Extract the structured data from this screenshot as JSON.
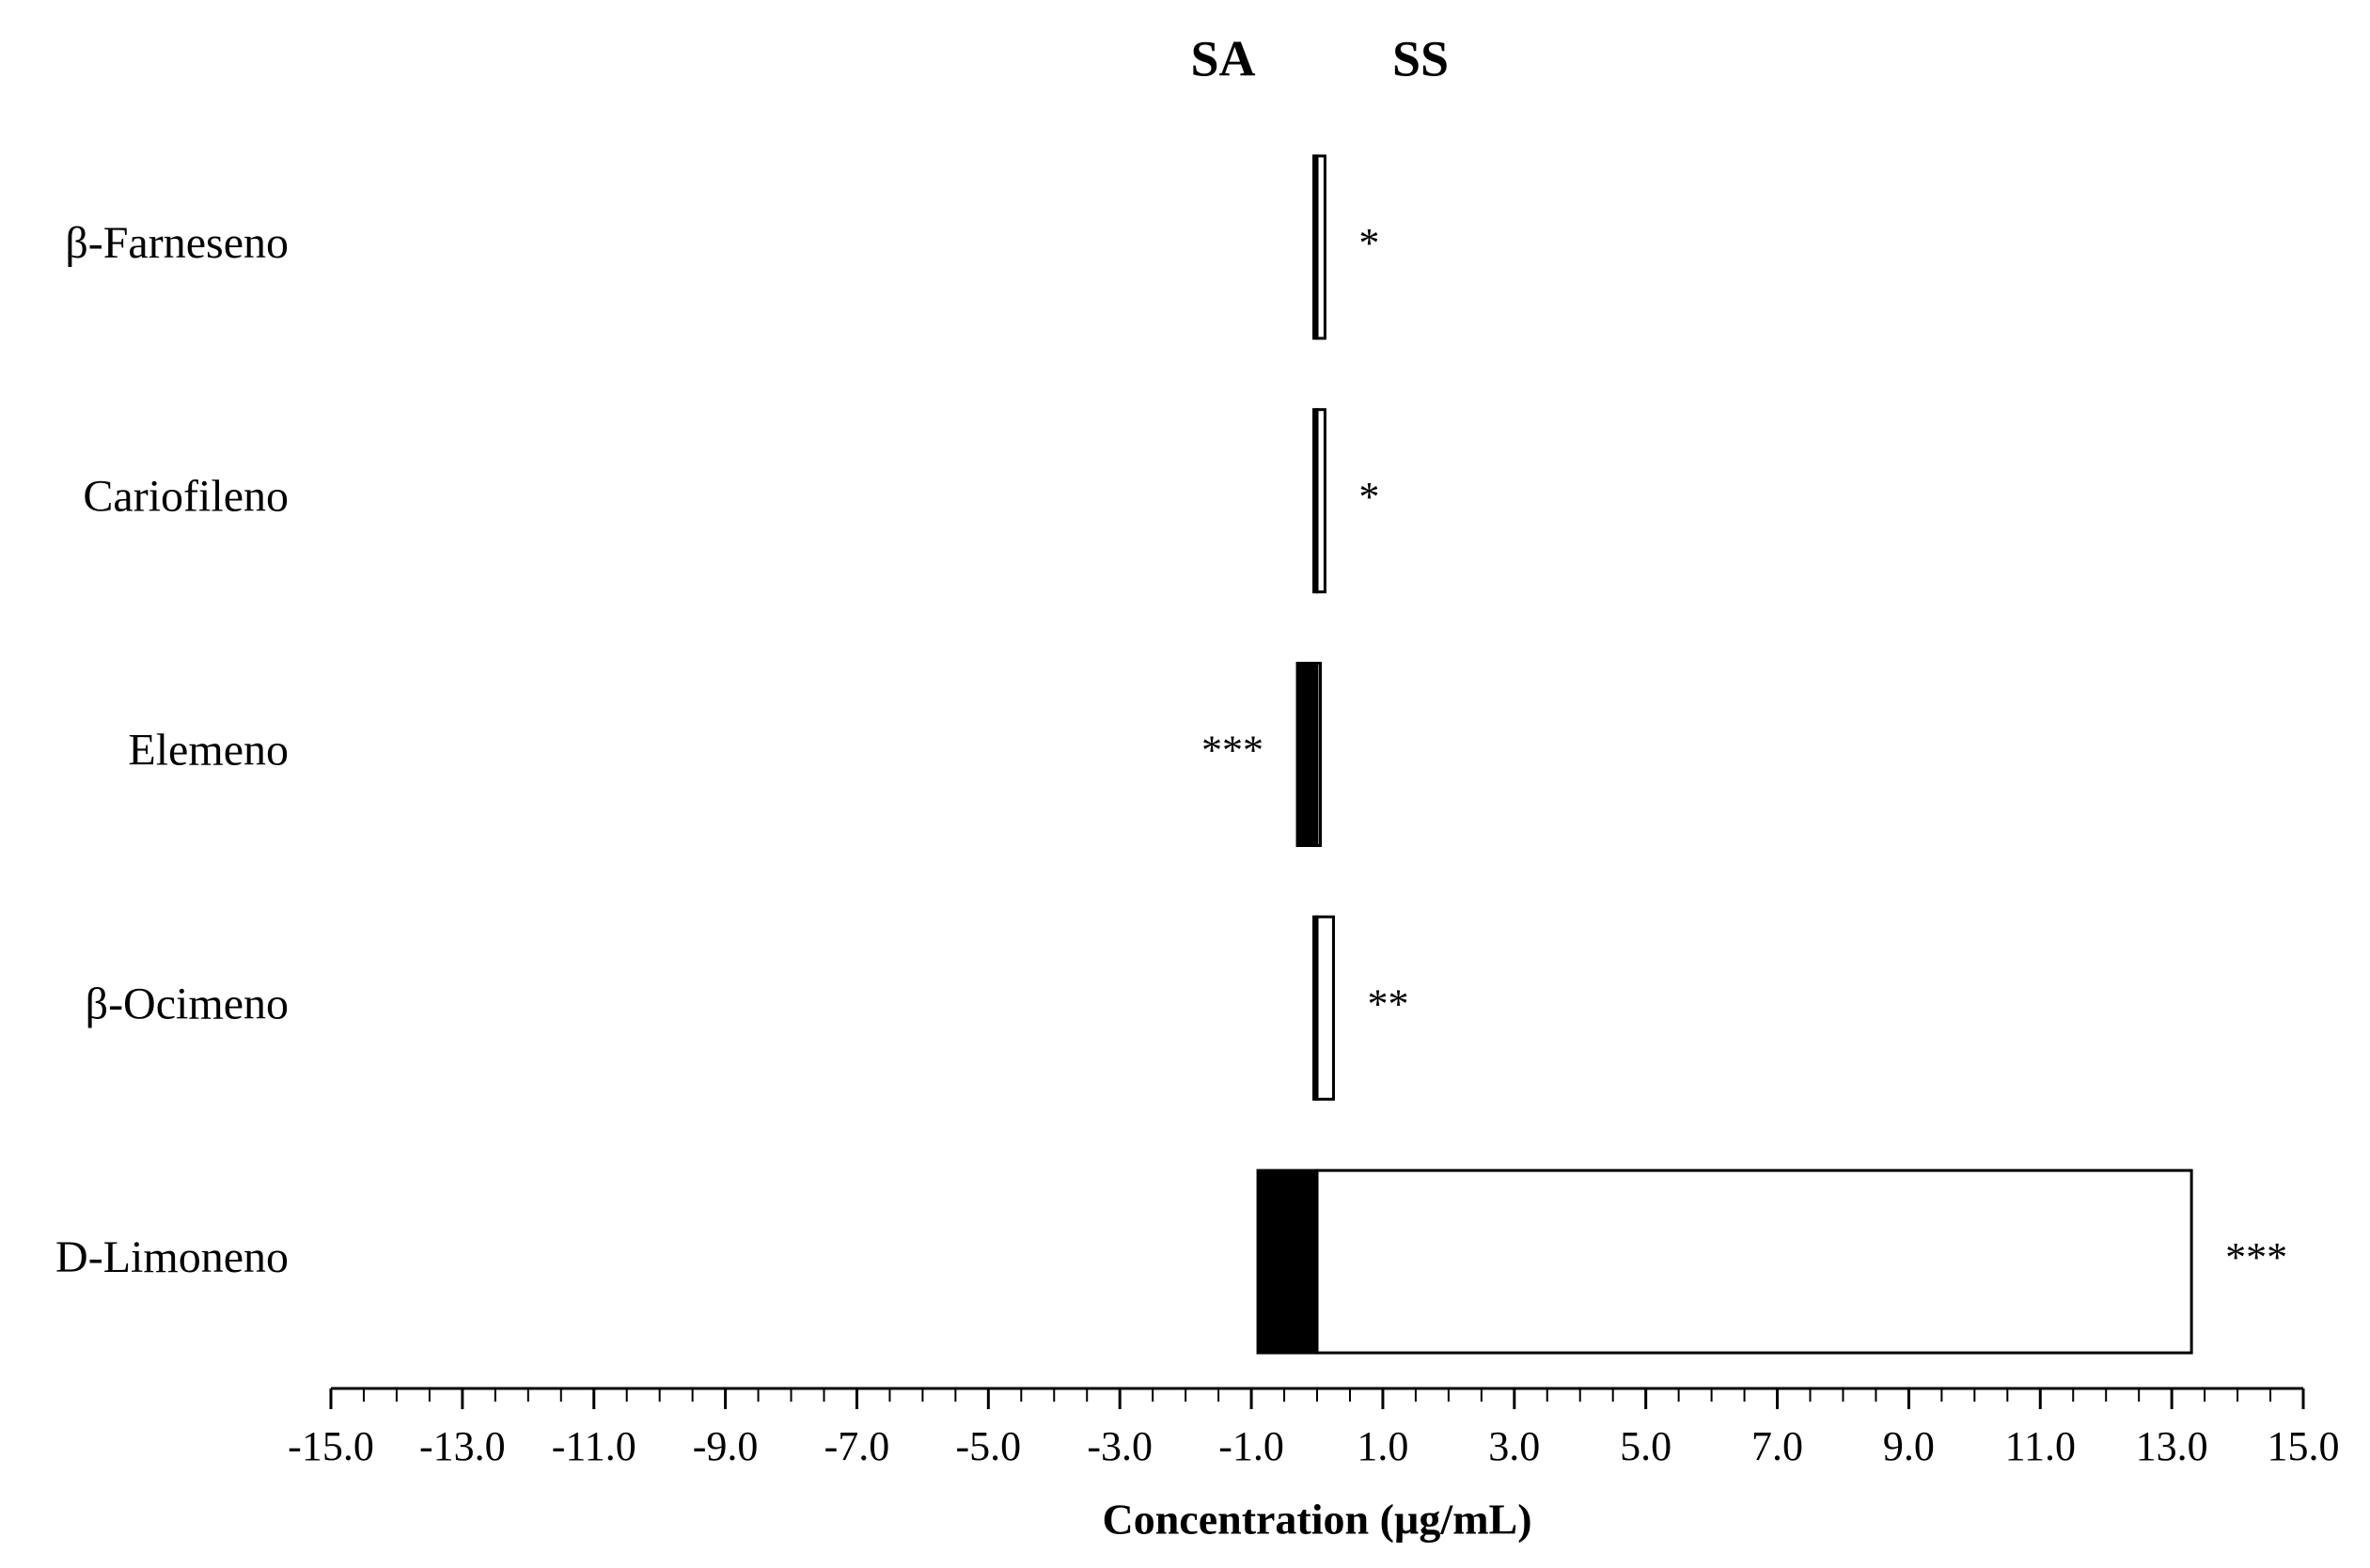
{
  "chart_data": {
    "type": "diverging_bar",
    "x_label": "Concentration (µg/mL)",
    "categories": [
      "β-Farneseno",
      "Cariofileno",
      "Elemeno",
      "β-Ocimeno",
      "D-Limoneno"
    ],
    "series": [
      {
        "name": "SA",
        "color": "#000000",
        "values": [
          -0.05,
          -0.05,
          -0.3,
          -0.05,
          -0.9
        ]
      },
      {
        "name": "SS",
        "color": "#ffffff",
        "values": [
          0.12,
          0.12,
          0.05,
          0.25,
          13.3
        ]
      }
    ],
    "annotations": [
      "*",
      "*",
      "***",
      "**",
      "***"
    ],
    "xlim": [
      -15,
      15
    ],
    "xticks": [
      {
        "value": -15,
        "label": "-15.0"
      },
      {
        "value": -13,
        "label": "-13.0"
      },
      {
        "value": -11,
        "label": "-11.0"
      },
      {
        "value": -9,
        "label": "-9.0"
      },
      {
        "value": -7,
        "label": "-7.0"
      },
      {
        "value": -5,
        "label": "-5.0"
      },
      {
        "value": -3,
        "label": "-3.0"
      },
      {
        "value": -1,
        "label": "-1.0"
      },
      {
        "value": 1,
        "label": "1.0"
      },
      {
        "value": 3,
        "label": "3.0"
      },
      {
        "value": 5,
        "label": "5.0"
      },
      {
        "value": 7,
        "label": "7.0"
      },
      {
        "value": 9,
        "label": "9.0"
      },
      {
        "value": 11,
        "label": "11.0"
      },
      {
        "value": 13,
        "label": "13.0"
      },
      {
        "value": 15,
        "label": "15.0"
      }
    ],
    "xticks_minor": [
      -15,
      -14.5,
      -14,
      -13.5,
      -13,
      -12.5,
      -12,
      -11.5,
      -11,
      -10.5,
      -10,
      -9.5,
      -9,
      -8.5,
      -8,
      -7.5,
      -7,
      -6.5,
      -6,
      -5.5,
      -5,
      -4.5,
      -4,
      -3.5,
      -3,
      -2.5,
      -2,
      -1.5,
      -1,
      -0.5,
      0,
      0.5,
      1,
      1.5,
      2,
      2.5,
      3,
      3.5,
      4,
      4.5,
      5,
      5.5,
      6,
      6.5,
      7,
      7.5,
      8,
      8.5,
      9,
      9.5,
      10,
      10.5,
      11,
      11.5,
      12,
      12.5,
      13,
      13.5,
      14,
      14.5,
      15
    ]
  }
}
